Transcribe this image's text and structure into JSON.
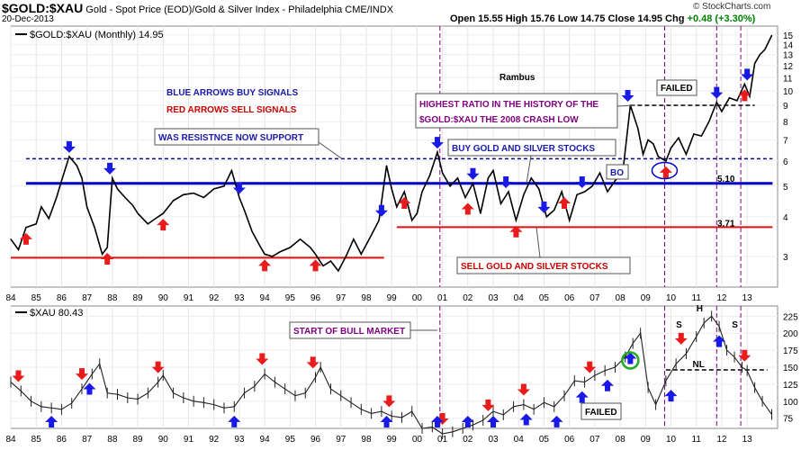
{
  "header": {
    "symbol": "$GOLD:$XAU",
    "description": "Gold - Spot Price (EOD)/Gold & Silver Index - Philadelphia  CME/INDX",
    "date": "20-Dec-2013",
    "ohlc": "Open 15.55  High 15.76  Low 14.75  Close 14.95  Chg",
    "change": "+0.48 (+3.30%)",
    "watermark": "© StockCharts.com"
  },
  "colors": {
    "up_arrow": "#1a1ae6",
    "down_arrow": "#e81c1c",
    "blue_line": "#0000cc",
    "red_line": "#dd1111",
    "purple": "#800080"
  },
  "chart_data": [
    {
      "type": "line",
      "legend": "$GOLD:$XAU (Monthly) 14.95",
      "x_tick_labels": [
        "84",
        "85",
        "86",
        "87",
        "88",
        "89",
        "90",
        "91",
        "92",
        "93",
        "94",
        "95",
        "96",
        "97",
        "98",
        "99",
        "00",
        "01",
        "02",
        "03",
        "04",
        "05",
        "06",
        "07",
        "08",
        "09",
        "10",
        "11",
        "12",
        "13"
      ],
      "y_ticks": [
        3,
        4,
        5,
        6,
        7,
        8,
        9,
        10,
        11,
        12,
        13,
        14,
        15
      ],
      "y_scale": "log",
      "ylim": [
        2.4,
        16
      ],
      "xlim": [
        1984.0,
        2014.2
      ],
      "series": [
        {
          "x": [
            1984.0,
            1984.3,
            1984.6,
            1985.0,
            1985.2,
            1985.5,
            1985.8,
            1986.0,
            1986.3,
            1986.6,
            1986.8,
            1987.0,
            1987.3,
            1987.6,
            1987.8,
            1988.0,
            1988.2,
            1988.5,
            1988.8,
            1989.0,
            1989.4,
            1989.8,
            1990.0,
            1990.4,
            1990.8,
            1991.2,
            1991.6,
            1992.0,
            1992.4,
            1992.7,
            1993.0,
            1993.2,
            1993.5,
            1993.8,
            1994.0,
            1994.3,
            1994.6,
            1995.0,
            1995.4,
            1995.8,
            1996.0,
            1996.3,
            1996.6,
            1996.9,
            1997.2,
            1997.5,
            1997.8,
            1998.2,
            1998.5,
            1998.8,
            1999.0,
            1999.2,
            1999.5,
            1999.8,
            2000.0,
            2000.2,
            2000.5,
            2000.8,
            2001.0,
            2001.3,
            2001.6,
            2001.9,
            2002.2,
            2002.5,
            2002.8,
            2003.0,
            2003.3,
            2003.6,
            2003.9,
            2004.2,
            2004.5,
            2004.8,
            2005.1,
            2005.4,
            2005.7,
            2006.0,
            2006.3,
            2006.6,
            2006.9,
            2007.2,
            2007.5,
            2007.8,
            2008.1,
            2008.4,
            2008.7,
            2008.9,
            2009.1,
            2009.3,
            2009.5,
            2009.8,
            2010.0,
            2010.3,
            2010.6,
            2010.9,
            2011.2,
            2011.5,
            2011.8,
            2012.0,
            2012.3,
            2012.6,
            2012.9,
            2013.1,
            2013.3,
            2013.5,
            2013.7,
            2013.97
          ],
          "values": [
            3.4,
            3.15,
            3.7,
            3.8,
            4.3,
            3.95,
            4.6,
            5.2,
            6.2,
            5.8,
            5.3,
            4.3,
            3.7,
            3.05,
            3.2,
            5.3,
            4.9,
            4.6,
            4.35,
            4.1,
            3.8,
            4.0,
            4.1,
            4.5,
            4.7,
            4.75,
            4.6,
            4.9,
            5.0,
            5.6,
            4.6,
            4.2,
            3.6,
            3.25,
            3.05,
            3.0,
            3.1,
            3.2,
            3.4,
            3.2,
            3.05,
            2.8,
            2.9,
            2.7,
            3.0,
            3.4,
            3.05,
            3.5,
            3.9,
            5.8,
            4.9,
            4.3,
            4.8,
            3.9,
            4.1,
            4.8,
            5.4,
            6.4,
            5.5,
            5.0,
            5.3,
            4.6,
            5.1,
            4.1,
            5.3,
            5.6,
            4.4,
            4.8,
            3.9,
            4.7,
            5.3,
            4.9,
            4.0,
            4.2,
            4.8,
            3.9,
            4.7,
            4.8,
            5.0,
            5.5,
            4.8,
            5.2,
            5.5,
            9.0,
            7.6,
            6.3,
            7.0,
            6.8,
            6.2,
            6.0,
            6.6,
            7.1,
            6.3,
            7.3,
            7.2,
            8.0,
            9.2,
            8.6,
            9.5,
            9.3,
            10.5,
            9.6,
            12.2,
            13.0,
            13.5,
            14.95
          ]
        }
      ],
      "annotations": {
        "author": "Rambus",
        "legend_blue": "BLUE ARROWS BUY SIGNALS",
        "legend_red": "RED ARROWS SELL SIGNALS",
        "support": "WAS RESISTNCE NOW SUPPORT",
        "buy": "BUY GOLD AND SILVER STOCKS",
        "sell": "SELL GOLD AND SILVER STOCKS",
        "ratio_1": "HIGHEST RATIO IN THE HISTORY OF THE",
        "ratio_2": "$GOLD:$XAU THE 2008 CRASH LOW",
        "failed": "FAILED",
        "bo": "BO",
        "level_510": "5.10",
        "level_371": "3.71"
      },
      "horizontal_lines": [
        {
          "label": "dotted-top",
          "value": 6.1,
          "x_from": 1984.6,
          "x_to": 2014.0
        },
        {
          "label": "solid-blue",
          "value": 5.1,
          "x_from": 1984.6,
          "x_to": 2014.0
        },
        {
          "label": "red-low",
          "value": 2.97,
          "x_from": 1984.0,
          "x_to": 1998.7
        },
        {
          "label": "red-mid",
          "value": 3.71,
          "x_from": 1999.2,
          "x_to": 2014.0
        },
        {
          "label": "black-dash-top",
          "value": 9.0,
          "x_from": 2008.4,
          "x_to": 2013.3
        }
      ],
      "buy_arrow_x": [
        1986.3,
        1987.9,
        1993.0,
        1998.6,
        2000.8,
        2002.2,
        2003.5,
        2005.0,
        2006.5,
        2008.3,
        2011.8,
        2013.0
      ],
      "sell_arrow_x": [
        1984.6,
        1987.8,
        1990.0,
        1994.0,
        1996.0,
        1999.5,
        2002.0,
        2003.9,
        2005.8,
        2009.8,
        2012.9
      ]
    },
    {
      "type": "line",
      "legend": "$XAU 80.43",
      "x_tick_labels": [
        "84",
        "85",
        "86",
        "87",
        "88",
        "89",
        "90",
        "91",
        "92",
        "93",
        "94",
        "95",
        "96",
        "97",
        "98",
        "99",
        "00",
        "01",
        "02",
        "03",
        "04",
        "05",
        "06",
        "07",
        "08",
        "09",
        "10",
        "11",
        "12",
        "13"
      ],
      "y_ticks": [
        75,
        100,
        125,
        150,
        175,
        200,
        225
      ],
      "ylim": [
        60,
        240
      ],
      "xlim": [
        1984.0,
        2014.2
      ],
      "series": [
        {
          "x": [
            1984.0,
            1984.4,
            1984.8,
            1985.2,
            1985.6,
            1986.0,
            1986.4,
            1986.8,
            1987.2,
            1987.5,
            1987.8,
            1988.2,
            1988.6,
            1989.0,
            1989.4,
            1989.8,
            1990.0,
            1990.4,
            1990.8,
            1991.2,
            1991.6,
            1992.0,
            1992.4,
            1992.8,
            1993.2,
            1993.6,
            1994.0,
            1994.4,
            1994.8,
            1995.2,
            1995.6,
            1996.0,
            1996.2,
            1996.6,
            1997.0,
            1997.4,
            1997.8,
            1998.2,
            1998.6,
            1999.0,
            1999.4,
            1999.8,
            2000.2,
            2000.6,
            2001.0,
            2001.4,
            2001.8,
            2002.2,
            2002.6,
            2003.0,
            2003.4,
            2003.8,
            2004.2,
            2004.6,
            2005.0,
            2005.4,
            2005.8,
            2006.2,
            2006.6,
            2007.0,
            2007.4,
            2007.8,
            2008.2,
            2008.5,
            2008.8,
            2009.1,
            2009.4,
            2009.8,
            2010.2,
            2010.6,
            2011.0,
            2011.3,
            2011.6,
            2011.9,
            2012.2,
            2012.5,
            2012.8,
            2013.0,
            2013.3,
            2013.6,
            2013.97
          ],
          "values": [
            128,
            115,
            100,
            92,
            90,
            88,
            97,
            118,
            140,
            155,
            112,
            110,
            105,
            103,
            112,
            128,
            138,
            112,
            105,
            100,
            98,
            95,
            90,
            92,
            112,
            122,
            140,
            128,
            118,
            108,
            112,
            135,
            150,
            118,
            108,
            98,
            88,
            82,
            85,
            78,
            76,
            85,
            60,
            62,
            52,
            55,
            60,
            65,
            72,
            85,
            80,
            92,
            95,
            88,
            98,
            92,
            108,
            130,
            128,
            138,
            145,
            150,
            165,
            185,
            200,
            120,
            95,
            130,
            155,
            170,
            195,
            215,
            225,
            210,
            175,
            165,
            150,
            145,
            120,
            100,
            80.43
          ]
        }
      ],
      "annotations": {
        "bull": "START OF BULL MARKET",
        "failed": "FAILED",
        "s1": "S",
        "h": "H",
        "s2": "S",
        "nl": "NL"
      },
      "horizontal_lines": [
        {
          "label": "neckline",
          "value": 146,
          "x_from": 2009.8,
          "x_to": 2013.8
        }
      ],
      "buy_arrow_x": [
        1985.6,
        1987.1,
        1992.8,
        1998.8,
        2000.8,
        2002.0,
        2003.0,
        2004.3,
        2005.5,
        2006.5,
        2007.5,
        2008.4,
        2010.0,
        2011.9
      ],
      "sell_arrow_x": [
        1984.3,
        1986.8,
        1989.8,
        1993.9,
        1995.9,
        1998.9,
        2001.0,
        2002.8,
        2004.2,
        2006.8,
        2010.4,
        2012.9
      ]
    }
  ]
}
